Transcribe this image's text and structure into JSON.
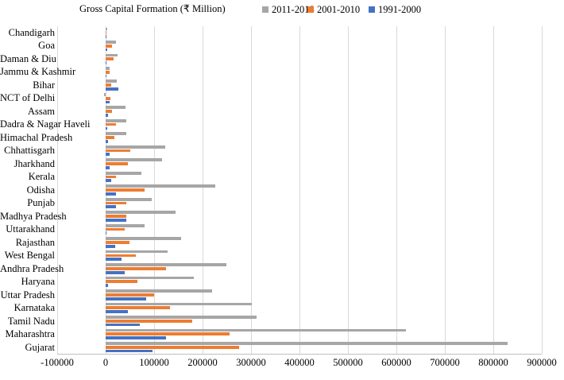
{
  "header": {
    "title": "Gross Capital Formation (₹ Million)"
  },
  "chart_data": {
    "type": "bar",
    "orientation": "horizontal",
    "title": "Gross Capital Formation (₹ Million)",
    "xlabel": "",
    "ylabel": "",
    "xlim": [
      -100000,
      900000
    ],
    "xticks": [
      -100000,
      0,
      100000,
      200000,
      300000,
      400000,
      500000,
      600000,
      700000,
      800000,
      900000
    ],
    "grid": true,
    "legend_position": "top",
    "categories": [
      "Chandigarh",
      "Goa",
      "Daman & Diu",
      "Jammu & Kashmir",
      "Bihar",
      "NCT of Delhi",
      "Assam",
      "Dadra & Nagar Haveli",
      "Himachal Pradesh",
      "Chhattisgarh",
      "Jharkhand",
      "Kerala",
      "Odisha",
      "Punjab",
      "Madhya Pradesh",
      "Uttarakhand",
      "Rajasthan",
      "West Bengal",
      "Andhra Pradesh",
      "Haryana",
      "Uttar Pradesh",
      "Karnataka",
      "Tamil Nadu",
      "Maharashtra",
      "Gujarat"
    ],
    "series": [
      {
        "name": "2011-2018",
        "color": "#A6A6A6",
        "values": [
          4000,
          21000,
          25000,
          9000,
          23000,
          -3000,
          41000,
          42000,
          42000,
          123000,
          117000,
          73000,
          226000,
          95000,
          144000,
          81000,
          156000,
          128000,
          249000,
          182000,
          219000,
          302000,
          312000,
          619000,
          830000
        ]
      },
      {
        "name": "2001-2010",
        "color": "#ED7D31",
        "values": [
          1000,
          13000,
          17000,
          8000,
          11000,
          10000,
          13000,
          21000,
          18000,
          51000,
          46000,
          21000,
          80000,
          43000,
          42000,
          39000,
          49000,
          63000,
          125000,
          66000,
          100000,
          132000,
          178000,
          255000,
          275000
        ]
      },
      {
        "name": "1991-2000",
        "color": "#4472C4",
        "values": [
          500,
          4000,
          2000,
          1000,
          26000,
          9000,
          5000,
          3000,
          5000,
          9000,
          9000,
          12000,
          22000,
          21000,
          42000,
          1000,
          19000,
          33000,
          40000,
          5000,
          83000,
          46000,
          70000,
          125000,
          96000
        ]
      }
    ]
  }
}
